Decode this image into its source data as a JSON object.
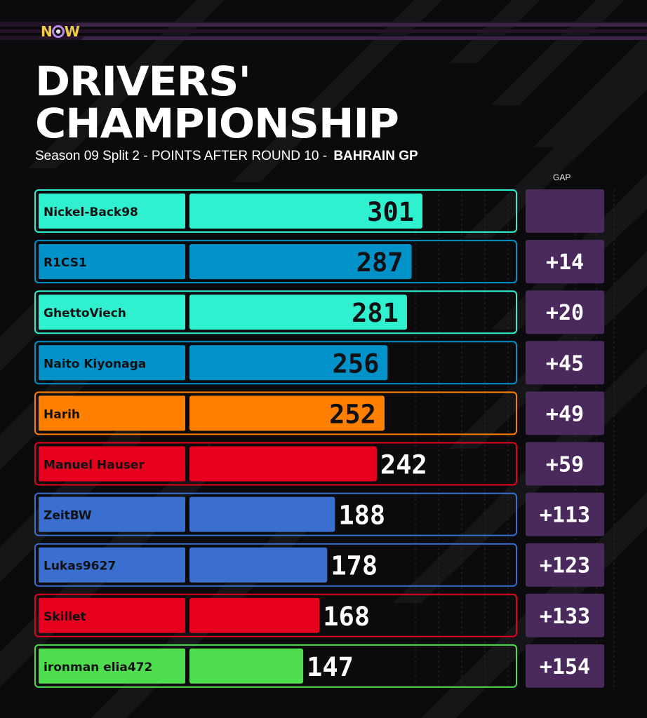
{
  "brand": {
    "logo_text": "NOW"
  },
  "header": {
    "title_line1": "DRIVERS'",
    "title_line2": "CHAMPIONSHIP",
    "subtitle": "Season 09 Split 2 - POINTS AFTER ROUND 10 -",
    "event": "BAHRAIN GP",
    "gap_label": "GAP"
  },
  "colors": {
    "background": "#0b0b0d",
    "accent_purple": "#4a2a5c",
    "gap_box": "#4a2a5c"
  },
  "chart_data": {
    "type": "bar",
    "orientation": "horizontal",
    "xlim": [
      0,
      301
    ],
    "categories": [
      "Nickel-Back98",
      "R1CS1",
      "GhettoViech",
      "Naito Kiyonaga",
      "Harih",
      "Manuel Hauser",
      "ZeitBW",
      "Lukas9627",
      "Skillet",
      "ironman elia472"
    ],
    "values": [
      301,
      287,
      281,
      256,
      252,
      242,
      188,
      178,
      168,
      147
    ],
    "gaps": [
      "",
      "+14",
      "+20",
      "+45",
      "+49",
      "+59",
      "+113",
      "+123",
      "+133",
      "+154"
    ],
    "bar_colors": [
      "#2ff0cf",
      "#0092c9",
      "#2ff0cf",
      "#0092c9",
      "#ff8000",
      "#e6001d",
      "#3a6fcf",
      "#3a6fcf",
      "#e6001d",
      "#4ddd4d"
    ],
    "value_label_inside": [
      true,
      true,
      true,
      true,
      true,
      false,
      false,
      false,
      false,
      false
    ]
  }
}
